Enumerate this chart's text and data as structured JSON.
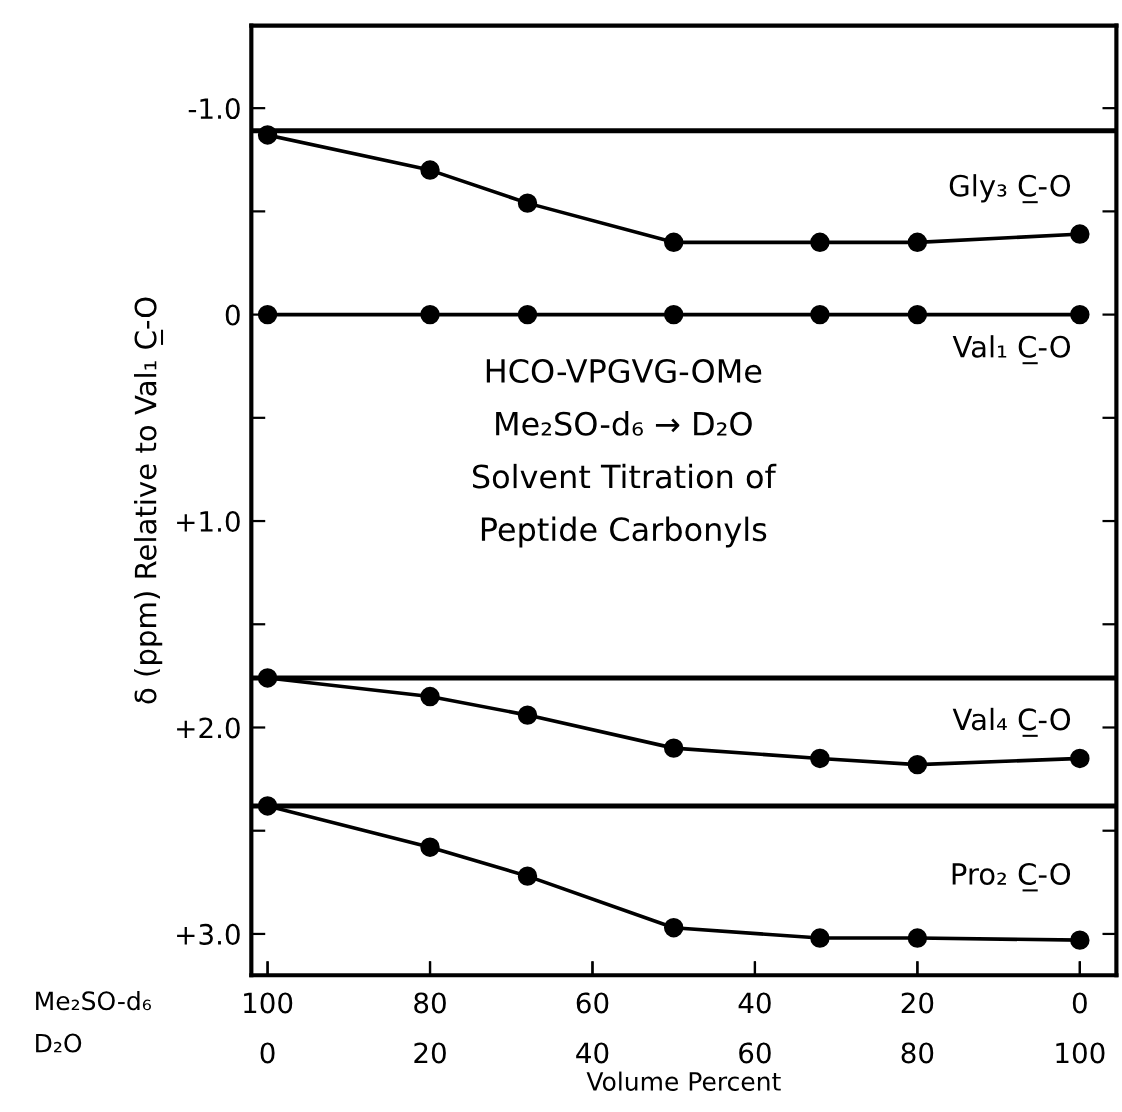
{
  "chart_data": {
    "type": "line",
    "xlabel": "Volume Percent",
    "ylabel": "δ (ppm) Relative to Val₁ C̲-O",
    "x": [
      0,
      20,
      32,
      50,
      68,
      80,
      100
    ],
    "series": [
      {
        "name": "Gly₃ C̲-O",
        "color": "#000000",
        "values": [
          -0.87,
          -0.7,
          -0.54,
          -0.35,
          -0.35,
          -0.35,
          -0.39
        ]
      },
      {
        "name": "Val₁ C̲-O",
        "color": "#000000",
        "values": [
          0,
          0,
          0,
          0,
          0,
          0,
          0
        ]
      },
      {
        "name": "Val₄ C̲-O",
        "color": "#000000",
        "values": [
          1.76,
          1.85,
          1.94,
          2.1,
          2.15,
          2.18,
          2.15
        ]
      },
      {
        "name": "Pro₂ C̲-O",
        "color": "#000000",
        "values": [
          2.38,
          2.58,
          2.72,
          2.97,
          3.02,
          3.02,
          3.03
        ]
      }
    ],
    "ref_lines": [
      {
        "axis": "y",
        "value": -0.89,
        "color": "#000000"
      },
      {
        "axis": "y",
        "value": 1.76,
        "color": "#000000"
      },
      {
        "axis": "y",
        "value": 2.38,
        "color": "#000000"
      }
    ],
    "xlim": [
      -2,
      104.5
    ],
    "xticks": [
      0,
      20,
      40,
      60,
      80,
      100
    ],
    "x2lim": [
      102,
      -4.5
    ],
    "x2ticks": [
      100,
      80,
      60,
      40,
      20,
      0
    ],
    "ylim": [
      3.2,
      -1.4
    ],
    "yticks": [
      {
        "value": -1.0,
        "label": "-1.0"
      },
      {
        "value": -0.5,
        "label": null
      },
      0,
      {
        "value": 0.5,
        "label": null
      },
      {
        "value": 1.0,
        "label": "+1.0"
      },
      {
        "value": 1.5,
        "label": null
      },
      {
        "value": 2.0,
        "label": "+2.0"
      },
      {
        "value": 2.5,
        "label": null
      },
      {
        "value": 3.0,
        "label": "+3.0"
      }
    ],
    "annotations": [
      "HCO-VPGVG-OMe\nMe₂SO-d₆ → D₂O\nSolvent Titration of\nPeptide Carbonyls",
      "Me₂SO-d₆",
      "D₂O"
    ],
    "marker": "circle",
    "line_style": "solid",
    "grid": false
  }
}
